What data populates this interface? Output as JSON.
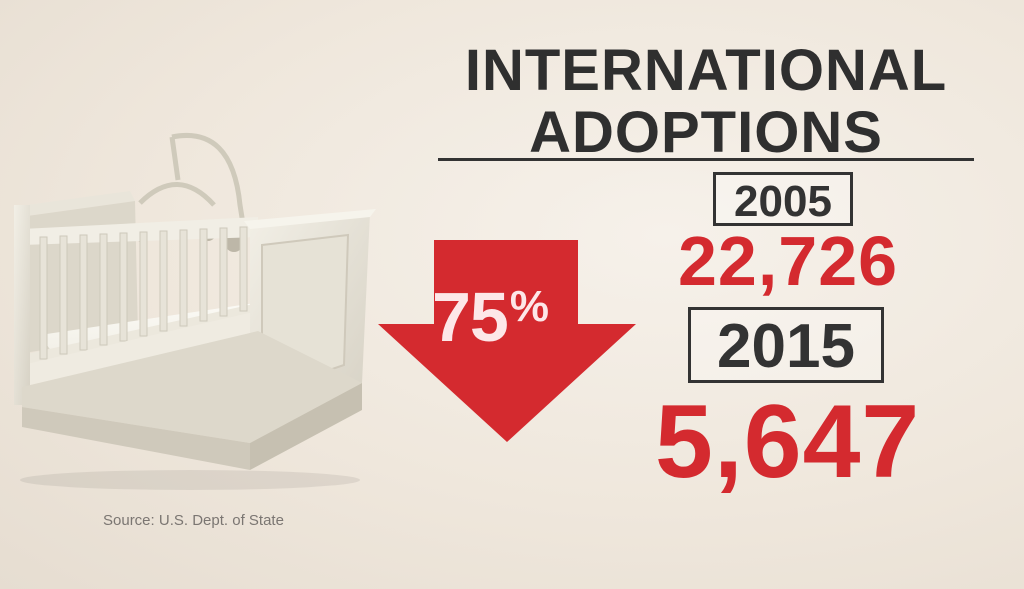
{
  "title": {
    "line1": "INTERNATIONAL",
    "line2": "ADOPTIONS"
  },
  "change": {
    "percent": "75",
    "percent_sign": "%",
    "direction": "down"
  },
  "years": [
    {
      "year": "2005",
      "count": "22,726"
    },
    {
      "year": "2015",
      "count": "5,647"
    }
  ],
  "source": "Source: U.S. Dept. of State",
  "colors": {
    "accent_red": "#d42a2f",
    "text_dark": "#2f2f2f",
    "background": "#f3ede5"
  },
  "icons": {
    "arrow": "down-arrow-icon",
    "illustration": "crib-illustration"
  }
}
